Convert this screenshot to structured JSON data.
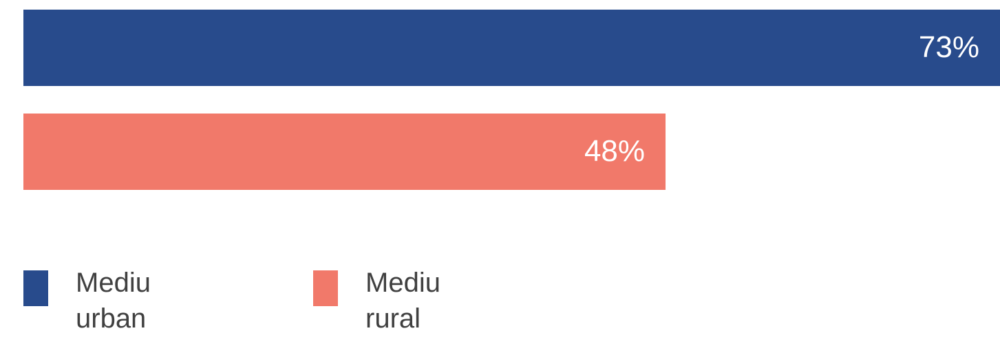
{
  "chart_data": {
    "type": "bar",
    "orientation": "horizontal",
    "series": [
      {
        "name": "Mediu urban",
        "color": "#284b8c",
        "values": [
          73
        ],
        "value_labels": [
          "73%"
        ]
      },
      {
        "name": "Mediu rural",
        "color": "#f1796a",
        "values": [
          48
        ],
        "value_labels": [
          "48%"
        ]
      }
    ],
    "xlim": [
      0,
      73
    ]
  }
}
